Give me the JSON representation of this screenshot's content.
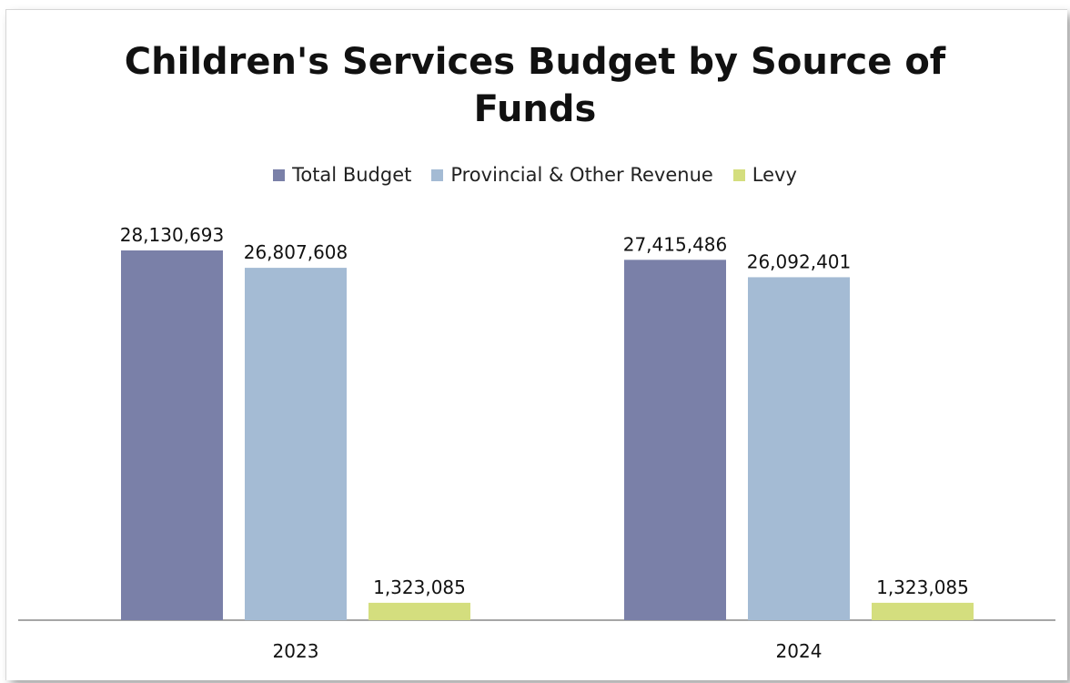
{
  "chart_data": {
    "type": "bar",
    "title_lines": [
      "Children's Services Budget by Source of",
      "Funds"
    ],
    "categories": [
      "2023",
      "2024"
    ],
    "series": [
      {
        "name": "Total Budget",
        "color": "#7a80a8",
        "values": [
          28130693,
          27415486
        ],
        "labels": [
          "28,130,693",
          "27,415,486"
        ]
      },
      {
        "name": "Provincial & Other Revenue",
        "color": "#a4bbd4",
        "values": [
          26807608,
          26092401
        ],
        "labels": [
          "26,807,608",
          "26,092,401"
        ]
      },
      {
        "name": "Levy",
        "color": "#d4de7e",
        "values": [
          1323085,
          1323085
        ],
        "labels": [
          "1,323,085",
          "1,323,085"
        ]
      }
    ],
    "ylim": [
      0,
      28130693
    ],
    "grid": false,
    "legend_position": "top"
  }
}
